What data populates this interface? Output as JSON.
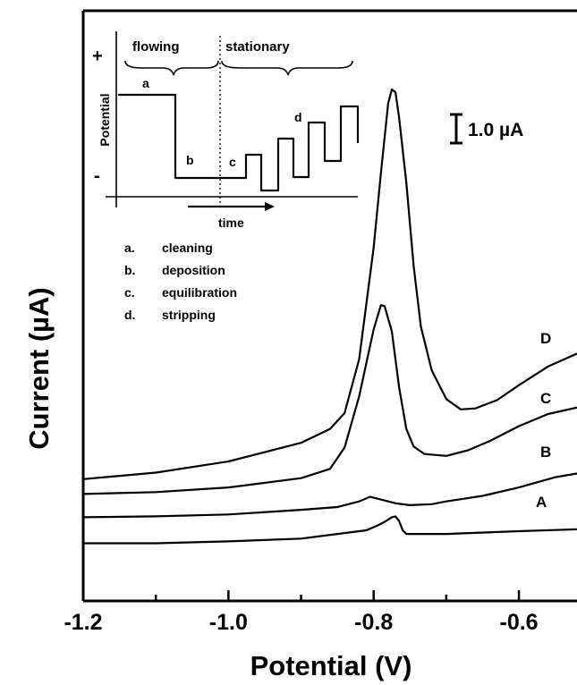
{
  "chart_data": {
    "type": "line",
    "xlabel": "Potential (V)",
    "ylabel": "Current (µA)",
    "xlim": [
      -1.2,
      -0.52
    ],
    "x_ticks": [
      -1.2,
      -1.0,
      -0.8,
      -0.6
    ],
    "x_tick_labels": [
      "-1.2",
      "-1.0",
      "-0.8",
      "-0.6"
    ],
    "y_ticks": "none",
    "y_units": "µA above bottom of plot",
    "scale_bar": {
      "label": "1.0 µA",
      "value": 1.0
    },
    "grid": false,
    "series": [
      {
        "label": "A",
        "points": [
          [
            -1.2,
            0.62
          ],
          [
            -1.1,
            0.62
          ],
          [
            -1.0,
            0.64
          ],
          [
            -0.9,
            0.67
          ],
          [
            -0.85,
            0.72
          ],
          [
            -0.81,
            0.76
          ],
          [
            -0.795,
            0.81
          ],
          [
            -0.785,
            0.85
          ],
          [
            -0.775,
            0.9
          ],
          [
            -0.77,
            0.91
          ],
          [
            -0.765,
            0.86
          ],
          [
            -0.76,
            0.76
          ],
          [
            -0.755,
            0.72
          ],
          [
            -0.74,
            0.72
          ],
          [
            -0.7,
            0.72
          ],
          [
            -0.6,
            0.75
          ],
          [
            -0.52,
            0.77
          ]
        ]
      },
      {
        "label": "B",
        "points": [
          [
            -1.2,
            0.9
          ],
          [
            -1.1,
            0.91
          ],
          [
            -1.0,
            0.93
          ],
          [
            -0.9,
            0.98
          ],
          [
            -0.85,
            1.01
          ],
          [
            -0.82,
            1.07
          ],
          [
            -0.805,
            1.12
          ],
          [
            -0.8,
            1.11
          ],
          [
            -0.79,
            1.09
          ],
          [
            -0.77,
            1.05
          ],
          [
            -0.75,
            1.03
          ],
          [
            -0.72,
            1.04
          ],
          [
            -0.7,
            1.07
          ],
          [
            -0.65,
            1.13
          ],
          [
            -0.6,
            1.22
          ],
          [
            -0.55,
            1.33
          ],
          [
            -0.52,
            1.37
          ]
        ]
      },
      {
        "label": "C",
        "points": [
          [
            -1.2,
            1.15
          ],
          [
            -1.1,
            1.17
          ],
          [
            -1.0,
            1.22
          ],
          [
            -0.9,
            1.32
          ],
          [
            -0.86,
            1.42
          ],
          [
            -0.84,
            1.65
          ],
          [
            -0.82,
            2.2
          ],
          [
            -0.8,
            2.92
          ],
          [
            -0.79,
            3.18
          ],
          [
            -0.785,
            3.17
          ],
          [
            -0.775,
            2.9
          ],
          [
            -0.765,
            2.3
          ],
          [
            -0.755,
            1.85
          ],
          [
            -0.745,
            1.66
          ],
          [
            -0.73,
            1.58
          ],
          [
            -0.7,
            1.56
          ],
          [
            -0.67,
            1.62
          ],
          [
            -0.64,
            1.72
          ],
          [
            -0.6,
            1.88
          ],
          [
            -0.56,
            2.01
          ],
          [
            -0.52,
            2.08
          ]
        ]
      },
      {
        "label": "D",
        "points": [
          [
            -1.2,
            1.31
          ],
          [
            -1.1,
            1.38
          ],
          [
            -1.0,
            1.5
          ],
          [
            -0.9,
            1.7
          ],
          [
            -0.86,
            1.85
          ],
          [
            -0.84,
            2.02
          ],
          [
            -0.82,
            2.6
          ],
          [
            -0.8,
            3.8
          ],
          [
            -0.79,
            4.6
          ],
          [
            -0.78,
            5.35
          ],
          [
            -0.775,
            5.5
          ],
          [
            -0.77,
            5.47
          ],
          [
            -0.765,
            5.2
          ],
          [
            -0.755,
            4.5
          ],
          [
            -0.745,
            3.6
          ],
          [
            -0.735,
            2.95
          ],
          [
            -0.72,
            2.48
          ],
          [
            -0.7,
            2.17
          ],
          [
            -0.68,
            2.06
          ],
          [
            -0.66,
            2.07
          ],
          [
            -0.63,
            2.16
          ],
          [
            -0.6,
            2.32
          ],
          [
            -0.56,
            2.52
          ],
          [
            -0.52,
            2.66
          ]
        ]
      }
    ],
    "curve_labels": [
      "A",
      "B",
      "C",
      "D"
    ]
  },
  "inset": {
    "ylabel": "Potential",
    "xlabel": "time",
    "plus_sign": "+",
    "minus_sign": "-",
    "phase_left": "flowing",
    "phase_right": "stationary",
    "step_labels": [
      "a",
      "b",
      "c",
      "d"
    ]
  },
  "legend": {
    "items": [
      {
        "key": "a.",
        "text": "cleaning"
      },
      {
        "key": "b.",
        "text": "deposition"
      },
      {
        "key": "c.",
        "text": "equilibration"
      },
      {
        "key": "d.",
        "text": "stripping"
      }
    ]
  }
}
